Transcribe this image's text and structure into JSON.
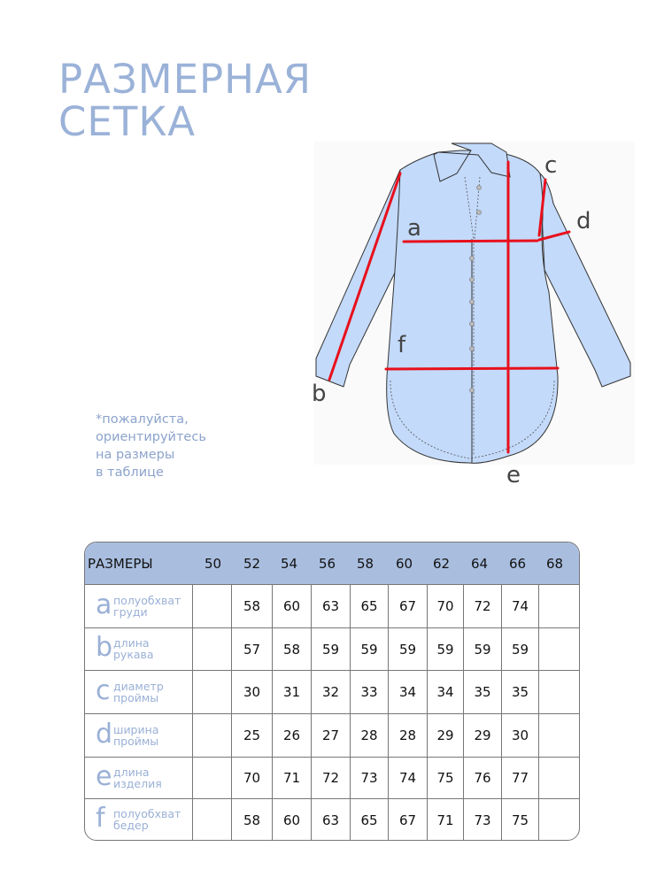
{
  "title": [
    "РАЗМЕРНАЯ",
    "СЕТКА"
  ],
  "note": [
    "*пожалуйста,",
    "ориентируйтесь",
    "на размеры",
    "в таблице"
  ],
  "diagram": {
    "labels": [
      "a",
      "b",
      "c",
      "d",
      "e",
      "f"
    ],
    "fill_color": "#c3dafa",
    "measure_color": "#e8101c"
  },
  "table": {
    "header_label": "РАЗМЕРЫ",
    "sizes": [
      "50",
      "52",
      "54",
      "56",
      "58",
      "60",
      "62",
      "64",
      "66",
      "68"
    ],
    "rows": [
      {
        "letter": "a",
        "desc": [
          "полуобхват",
          "груди"
        ],
        "values": [
          "",
          "58",
          "60",
          "63",
          "65",
          "67",
          "70",
          "72",
          "74",
          ""
        ]
      },
      {
        "letter": "b",
        "desc": [
          "длина",
          "рукава"
        ],
        "values": [
          "",
          "57",
          "58",
          "59",
          "59",
          "59",
          "59",
          "59",
          "59",
          ""
        ]
      },
      {
        "letter": "c",
        "desc": [
          "диаметр",
          "проймы"
        ],
        "values": [
          "",
          "30",
          "31",
          "32",
          "33",
          "34",
          "34",
          "35",
          "35",
          ""
        ]
      },
      {
        "letter": "d",
        "desc": [
          "ширина",
          "проймы"
        ],
        "values": [
          "",
          "25",
          "26",
          "27",
          "28",
          "28",
          "29",
          "29",
          "30",
          ""
        ]
      },
      {
        "letter": "e",
        "desc": [
          "длина",
          "изделия"
        ],
        "values": [
          "",
          "70",
          "71",
          "72",
          "73",
          "74",
          "75",
          "76",
          "77",
          ""
        ]
      },
      {
        "letter": "f",
        "desc": [
          "полуобхват",
          "бедер"
        ],
        "values": [
          "",
          "58",
          "60",
          "63",
          "65",
          "67",
          "71",
          "73",
          "75",
          ""
        ]
      }
    ]
  }
}
